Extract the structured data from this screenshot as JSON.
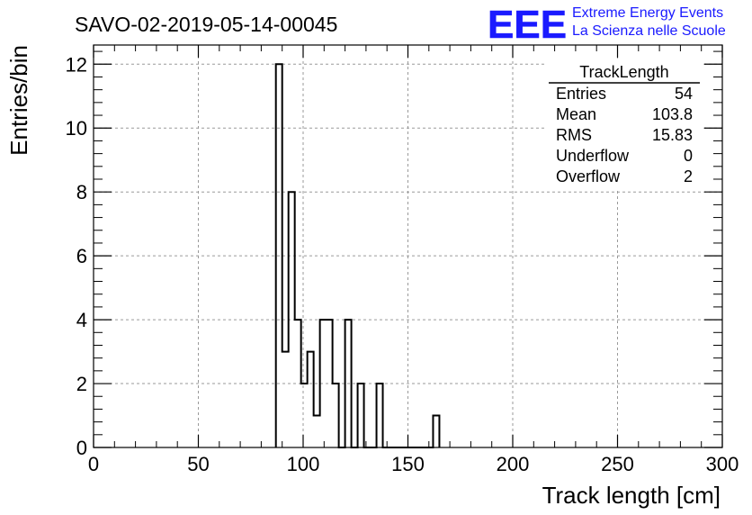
{
  "header": {
    "run_title": "SAVO-02-2019-05-14-00045",
    "logo_letters": "EEE",
    "logo_line1": "Extreme Energy Events",
    "logo_line2": "La Scienza nelle Scuole",
    "logo_color": "#1a1aff"
  },
  "stats": {
    "name": "TrackLength",
    "rows": [
      {
        "label": "Entries",
        "value": "54"
      },
      {
        "label": "Mean",
        "value": "103.8"
      },
      {
        "label": "RMS",
        "value": "15.83"
      },
      {
        "label": "Underflow",
        "value": "0"
      },
      {
        "label": "Overflow",
        "value": "2"
      }
    ]
  },
  "chart_data": {
    "type": "bar",
    "histogram": true,
    "xlabel": "Track length [cm]",
    "ylabel": "Entries/bin",
    "xlim": [
      0,
      300
    ],
    "ylim": [
      0,
      12.6
    ],
    "grid": true,
    "bin_width": 3,
    "bin_edges_start": 87,
    "values": [
      12,
      3,
      8,
      4,
      2,
      3,
      1,
      4,
      4,
      2,
      0,
      4,
      0,
      2,
      0,
      0,
      2,
      0,
      0,
      0,
      0,
      0,
      0,
      0,
      0,
      1
    ],
    "x_ticks": [
      "0",
      "50",
      "100",
      "150",
      "200",
      "250",
      "300"
    ],
    "x_tick_values": [
      0,
      50,
      100,
      150,
      200,
      250,
      300
    ],
    "y_ticks": [
      "0",
      "2",
      "4",
      "6",
      "8",
      "10",
      "12"
    ],
    "y_tick_values": [
      0,
      2,
      4,
      6,
      8,
      10,
      12
    ],
    "line_color": "#000000"
  }
}
